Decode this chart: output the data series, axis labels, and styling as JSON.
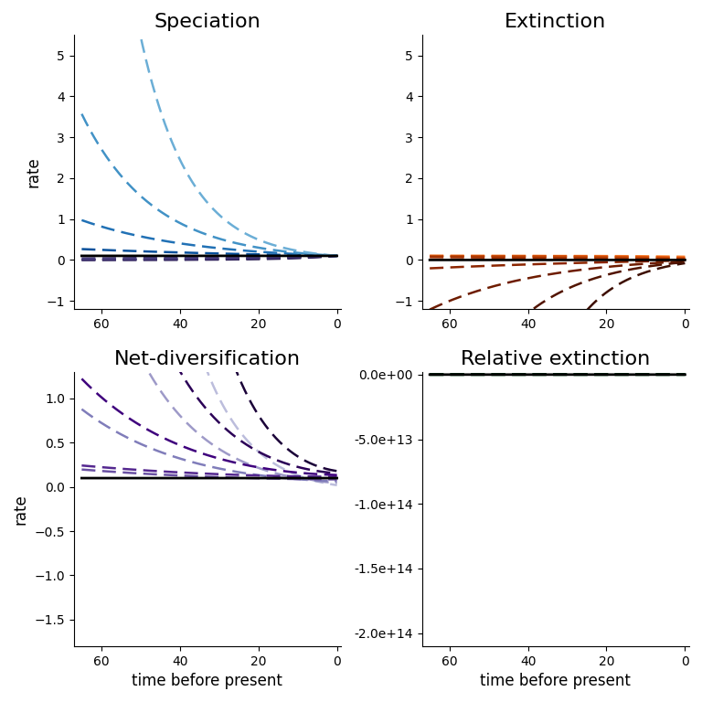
{
  "titles": [
    "Speciation",
    "Extinction",
    "Net-diversification",
    "Relative extinction"
  ],
  "xlabel": "time before present",
  "ylabel": "rate",
  "t_max": 65,
  "n_points": 2000,
  "lambda0": 0.1,
  "alphas": [
    0.08,
    0.055,
    0.035,
    0.015,
    -0.015,
    -0.035,
    -0.055,
    -0.08
  ],
  "speciation_ylim": [
    -1.2,
    5.5
  ],
  "extinction_ylim": [
    -1.2,
    5.5
  ],
  "netdiv_ylim": [
    -1.8,
    1.3
  ],
  "relext_ylim": [
    -210000000000000.0,
    2000000000000.0
  ],
  "speciation_yticks": [
    -1,
    0,
    1,
    2,
    3,
    4,
    5
  ],
  "extinction_yticks": [
    -1,
    0,
    1,
    2,
    3,
    4,
    5
  ],
  "xticks": [
    60,
    40,
    20,
    0
  ],
  "relext_yticks": [
    0,
    -50000000000000.0,
    -100000000000000.0,
    -150000000000000.0,
    -200000000000000.0
  ],
  "spec_colors": [
    "#6baed6",
    "#4292c6",
    "#2171b5",
    "#08519c",
    "#4a4080",
    "#3d3070",
    "#302060",
    "#23184a"
  ],
  "ext_colors": [
    "#fd8d3c",
    "#e6550d",
    "#c54a06",
    "#a33203",
    "#8b2500",
    "#6e1c00",
    "#521400",
    "#3d0e00"
  ],
  "div_colors": [
    "#bcbddc",
    "#9e9ac8",
    "#807dba",
    "#6a51a3",
    "#54278f",
    "#3f007d",
    "#2b0057",
    "#1a0038"
  ],
  "rel_colors": [
    "#a1d99b",
    "#74c476",
    "#41ab5d",
    "#238b45",
    "#006d2c",
    "#00441b",
    "#002d12",
    "#001a0a"
  ],
  "ref_color": "#000000",
  "background_color": "#ffffff",
  "title_fontsize": 16,
  "label_fontsize": 12,
  "tick_fontsize": 10,
  "lw": 1.8,
  "ref_lw": 2.0,
  "xlim_left": 67,
  "xlim_right": -1
}
